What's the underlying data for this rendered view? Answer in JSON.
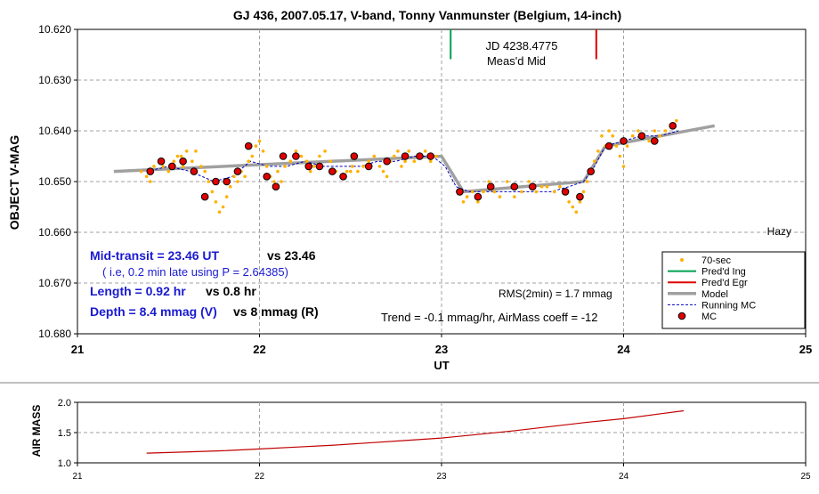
{
  "chart_data": [
    {
      "type": "scatter",
      "title": "GJ 436, 2007.05.17, V-band, Tonny Vanmunster (Belgium, 14-inch)",
      "xlabel": "UT",
      "ylabel": "OBJECT V-MAG",
      "xlim": [
        21,
        25
      ],
      "ylim": [
        10.68,
        10.62
      ],
      "y_inverted": true,
      "x_ticks": [
        "21",
        "22",
        "23",
        "24",
        "25"
      ],
      "y_ticks": [
        "10.620",
        "10.630",
        "10.640",
        "10.650",
        "10.660",
        "10.670",
        "10.680"
      ],
      "grid": true,
      "legend_position": "bottom-right",
      "legend": [
        "70-sec",
        "Pred'd Ing",
        "Pred'd Egr",
        "Model",
        "Running MC",
        "MC"
      ],
      "annotations": {
        "jd": "JD 4238.4775",
        "measd_mid": "Meas'd Mid",
        "hazy": "Hazy",
        "mid_transit_label": "Mid-transit = 23.46 UT",
        "mid_transit_vs": "vs 23.46",
        "late_note": "( i.e, 0.2 min late using P = 2.64385)",
        "length_label": "Length = 0.92 hr",
        "length_vs": "vs 0.8 hr",
        "depth_label": "Depth = 8.4 mmag (V)",
        "depth_vs": "vs 8 mmag (R)",
        "rms": "RMS(2min) = 1.7 mmag",
        "trend": "Trend = -0.1 mmag/hr, AirMass coeff = -12"
      },
      "pred_ingress_x": 23.05,
      "pred_egress_x": 23.85,
      "pred_line_y": [
        10.62,
        10.625
      ],
      "series": [
        {
          "name": "70-sec",
          "color": "#ffb000",
          "points": [
            [
              21.38,
              10.649
            ],
            [
              21.4,
              10.65
            ],
            [
              21.42,
              10.647
            ],
            [
              21.45,
              10.646
            ],
            [
              21.47,
              10.647
            ],
            [
              21.5,
              10.648
            ],
            [
              21.53,
              10.646
            ],
            [
              21.55,
              10.645
            ],
            [
              21.58,
              10.647
            ],
            [
              21.6,
              10.644
            ],
            [
              21.63,
              10.646
            ],
            [
              21.65,
              10.644
            ],
            [
              21.68,
              10.647
            ],
            [
              21.7,
              10.648
            ],
            [
              21.72,
              10.65
            ],
            [
              21.74,
              10.652
            ],
            [
              21.76,
              10.654
            ],
            [
              21.78,
              10.656
            ],
            [
              21.8,
              10.655
            ],
            [
              21.82,
              10.653
            ],
            [
              21.84,
              10.651
            ],
            [
              21.86,
              10.649
            ],
            [
              21.88,
              10.65
            ],
            [
              21.9,
              10.648
            ],
            [
              21.92,
              10.649
            ],
            [
              21.94,
              10.646
            ],
            [
              21.96,
              10.645
            ],
            [
              21.98,
              10.643
            ],
            [
              22.0,
              10.642
            ],
            [
              22.02,
              10.644
            ],
            [
              22.04,
              10.647
            ],
            [
              22.06,
              10.649
            ],
            [
              22.08,
              10.65
            ],
            [
              22.1,
              10.648
            ],
            [
              22.12,
              10.65
            ],
            [
              22.14,
              10.647
            ],
            [
              22.17,
              10.646
            ],
            [
              22.2,
              10.644
            ],
            [
              22.23,
              10.645
            ],
            [
              22.26,
              10.646
            ],
            [
              22.28,
              10.648
            ],
            [
              22.3,
              10.647
            ],
            [
              22.33,
              10.645
            ],
            [
              22.36,
              10.644
            ],
            [
              22.39,
              10.646
            ],
            [
              22.42,
              10.648
            ],
            [
              22.45,
              10.649
            ],
            [
              22.48,
              10.648
            ],
            [
              22.51,
              10.647
            ],
            [
              22.54,
              10.648
            ],
            [
              22.57,
              10.647
            ],
            [
              22.6,
              10.646
            ],
            [
              22.63,
              10.645
            ],
            [
              22.66,
              10.647
            ],
            [
              22.68,
              10.648
            ],
            [
              22.7,
              10.649
            ],
            [
              22.72,
              10.646
            ],
            [
              22.74,
              10.645
            ],
            [
              22.76,
              10.644
            ],
            [
              22.78,
              10.647
            ],
            [
              22.8,
              10.646
            ],
            [
              22.82,
              10.644
            ],
            [
              22.85,
              10.646
            ],
            [
              22.88,
              10.645
            ],
            [
              22.91,
              10.644
            ],
            [
              22.94,
              10.646
            ],
            [
              22.97,
              10.645
            ],
            [
              23.1,
              10.652
            ],
            [
              23.12,
              10.654
            ],
            [
              23.14,
              10.653
            ],
            [
              23.17,
              10.652
            ],
            [
              23.2,
              10.654
            ],
            [
              23.23,
              10.652
            ],
            [
              23.26,
              10.65
            ],
            [
              23.29,
              10.652
            ],
            [
              23.32,
              10.653
            ],
            [
              23.36,
              10.65
            ],
            [
              23.4,
              10.653
            ],
            [
              23.44,
              10.652
            ],
            [
              23.48,
              10.65
            ],
            [
              23.52,
              10.652
            ],
            [
              23.55,
              10.651
            ],
            [
              23.58,
              10.651
            ],
            [
              23.62,
              10.652
            ],
            [
              23.65,
              10.651
            ],
            [
              23.68,
              10.652
            ],
            [
              23.7,
              10.654
            ],
            [
              23.72,
              10.655
            ],
            [
              23.74,
              10.656
            ],
            [
              23.76,
              10.654
            ],
            [
              23.78,
              10.652
            ],
            [
              23.8,
              10.65
            ],
            [
              23.82,
              10.648
            ],
            [
              23.84,
              10.646
            ],
            [
              23.86,
              10.644
            ],
            [
              23.88,
              10.641
            ],
            [
              23.9,
              10.643
            ],
            [
              23.92,
              10.64
            ],
            [
              23.94,
              10.641
            ],
            [
              23.96,
              10.643
            ],
            [
              23.98,
              10.645
            ],
            [
              24.0,
              10.647
            ],
            [
              24.02,
              10.643
            ],
            [
              24.05,
              10.641
            ],
            [
              24.08,
              10.64
            ],
            [
              24.11,
              10.641
            ],
            [
              24.14,
              10.642
            ],
            [
              24.17,
              10.64
            ],
            [
              24.2,
              10.641
            ],
            [
              24.23,
              10.64
            ],
            [
              24.26,
              10.639
            ],
            [
              24.29,
              10.638
            ],
            [
              21.35,
              10.648
            ],
            [
              21.57,
              10.645
            ],
            [
              22.5,
              10.648
            ]
          ]
        },
        {
          "name": "Pred'd Ing",
          "color": "#00a050"
        },
        {
          "name": "Pred'd Egr",
          "color": "#e00000"
        },
        {
          "name": "Model",
          "color": "#a0a0a0",
          "points": [
            [
              21.2,
              10.648
            ],
            [
              23.0,
              10.645
            ],
            [
              23.12,
              10.652
            ],
            [
              23.78,
              10.65
            ],
            [
              23.9,
              10.643
            ],
            [
              24.5,
              10.639
            ]
          ]
        },
        {
          "name": "Running MC",
          "color": "#0000c0",
          "points": [
            [
              21.38,
              10.648
            ],
            [
              21.5,
              10.647
            ],
            [
              21.62,
              10.648
            ],
            [
              21.75,
              10.65
            ],
            [
              21.85,
              10.649
            ],
            [
              21.95,
              10.646
            ],
            [
              22.05,
              10.647
            ],
            [
              22.15,
              10.647
            ],
            [
              22.25,
              10.646
            ],
            [
              22.35,
              10.647
            ],
            [
              22.45,
              10.647
            ],
            [
              22.55,
              10.647
            ],
            [
              22.65,
              10.646
            ],
            [
              22.75,
              10.646
            ],
            [
              22.85,
              10.645
            ],
            [
              22.95,
              10.645
            ],
            [
              23.02,
              10.647
            ],
            [
              23.08,
              10.651
            ],
            [
              23.15,
              10.652
            ],
            [
              23.3,
              10.652
            ],
            [
              23.45,
              10.652
            ],
            [
              23.6,
              10.652
            ],
            [
              23.7,
              10.651
            ],
            [
              23.78,
              10.65
            ],
            [
              23.84,
              10.647
            ],
            [
              23.9,
              10.643
            ],
            [
              24.0,
              10.642
            ],
            [
              24.1,
              10.641
            ],
            [
              24.2,
              10.641
            ],
            [
              24.3,
              10.64
            ]
          ]
        },
        {
          "name": "MC",
          "color": "#e00000",
          "points": [
            [
              21.4,
              10.648
            ],
            [
              21.46,
              10.646
            ],
            [
              21.52,
              10.647
            ],
            [
              21.58,
              10.646
            ],
            [
              21.64,
              10.648
            ],
            [
              21.7,
              10.653
            ],
            [
              21.76,
              10.65
            ],
            [
              21.82,
              10.65
            ],
            [
              21.88,
              10.648
            ],
            [
              21.94,
              10.643
            ],
            [
              22.04,
              10.649
            ],
            [
              22.09,
              10.651
            ],
            [
              22.13,
              10.645
            ],
            [
              22.2,
              10.645
            ],
            [
              22.27,
              10.647
            ],
            [
              22.33,
              10.647
            ],
            [
              22.4,
              10.648
            ],
            [
              22.46,
              10.649
            ],
            [
              22.52,
              10.645
            ],
            [
              22.6,
              10.647
            ],
            [
              22.7,
              10.646
            ],
            [
              22.8,
              10.645
            ],
            [
              22.88,
              10.645
            ],
            [
              22.94,
              10.645
            ],
            [
              23.1,
              10.652
            ],
            [
              23.2,
              10.653
            ],
            [
              23.27,
              10.651
            ],
            [
              23.4,
              10.651
            ],
            [
              23.5,
              10.651
            ],
            [
              23.68,
              10.652
            ],
            [
              23.76,
              10.653
            ],
            [
              23.82,
              10.648
            ],
            [
              23.92,
              10.643
            ],
            [
              24.0,
              10.642
            ],
            [
              24.1,
              10.641
            ],
            [
              24.17,
              10.642
            ],
            [
              24.27,
              10.639
            ]
          ]
        }
      ]
    },
    {
      "type": "line",
      "xlabel": "",
      "ylabel": "AIR MASS",
      "xlim": [
        21,
        25
      ],
      "ylim": [
        1.0,
        2.0
      ],
      "x_ticks": [
        "21",
        "22",
        "23",
        "24",
        "25"
      ],
      "y_ticks": [
        "1.0",
        "1.5",
        "2.0"
      ],
      "grid": true,
      "series": [
        {
          "color": "#c00000",
          "points": [
            [
              21.38,
              1.16
            ],
            [
              21.6,
              1.18
            ],
            [
              21.8,
              1.2
            ],
            [
              22.0,
              1.23
            ],
            [
              22.2,
              1.26
            ],
            [
              22.4,
              1.29
            ],
            [
              22.6,
              1.33
            ],
            [
              22.8,
              1.37
            ],
            [
              23.0,
              1.41
            ],
            [
              23.2,
              1.47
            ],
            [
              23.4,
              1.53
            ],
            [
              23.6,
              1.6
            ],
            [
              23.8,
              1.67
            ],
            [
              24.0,
              1.73
            ],
            [
              24.2,
              1.81
            ],
            [
              24.33,
              1.86
            ]
          ]
        }
      ]
    }
  ]
}
